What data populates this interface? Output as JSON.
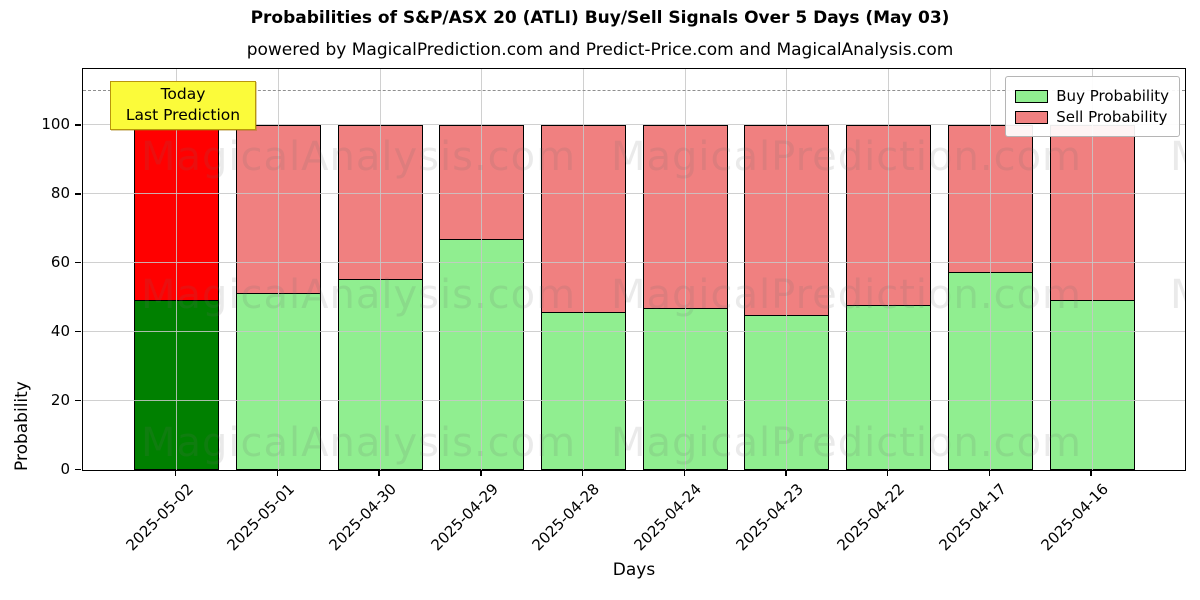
{
  "title": "Probabilities of S&P/ASX 20 (ATLI) Buy/Sell Signals Over 5 Days (May 03)",
  "subtitle": "powered by MagicalPrediction.com and Predict-Price.com and MagicalAnalysis.com",
  "chart_data": {
    "type": "bar",
    "stacked": true,
    "categories": [
      "2025-05-02",
      "2025-05-01",
      "2025-04-30",
      "2025-04-29",
      "2025-04-28",
      "2025-04-24",
      "2025-04-23",
      "2025-04-22",
      "2025-04-17",
      "2025-04-16"
    ],
    "series": [
      {
        "name": "Buy Probability",
        "color": "#90EE90",
        "values": [
          49.5,
          51.5,
          55.5,
          67,
          46,
          47,
          45,
          48,
          57.5,
          49.5
        ]
      },
      {
        "name": "Sell Probability",
        "color": "#F08080",
        "values": [
          50.5,
          48.5,
          44.5,
          33,
          54,
          53,
          55,
          52,
          42.5,
          50.5
        ]
      }
    ],
    "today_bar": {
      "category": "2025-05-02",
      "buy_color": "#008000",
      "sell_color": "#FF0000"
    },
    "xlabel": "Days",
    "ylabel": "Probability",
    "ylim": [
      0,
      116
    ],
    "yticks": [
      0,
      20,
      40,
      60,
      80,
      100
    ],
    "bar_total": 100,
    "threshold_line": {
      "y": 110,
      "style": "dashed",
      "color": "#8f8f8f"
    },
    "grid": true,
    "legend": {
      "position": "upper right"
    },
    "annotation": {
      "lines": [
        "Today",
        "Last Prediction"
      ],
      "bg_color": "#fbfb3a",
      "border_color": "#b8960c"
    }
  },
  "watermarks": {
    "left_text": "MagicalAnalysis.com",
    "right_text": "MagicalPrediction.com",
    "partial_text": "M"
  }
}
